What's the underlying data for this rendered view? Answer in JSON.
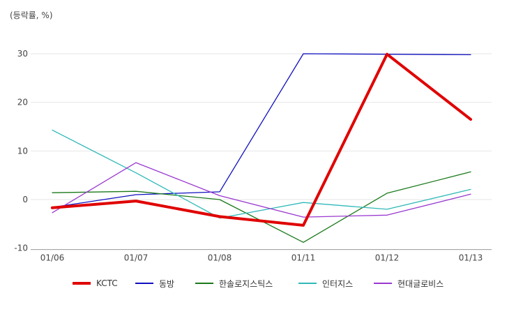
{
  "chart_data": {
    "type": "line",
    "ylabel": "(등락률, %)",
    "categories": [
      "01/06",
      "01/07",
      "01/08",
      "01/11",
      "01/12",
      "01/13"
    ],
    "yticks": [
      30,
      20,
      10,
      0,
      -10
    ],
    "ylim": [
      -10,
      30
    ],
    "grid": true,
    "legend_position": "bottom",
    "series": [
      {
        "name": "KCTC",
        "color": "#e00000",
        "emphasis": true,
        "values": [
          -1.7,
          -0.3,
          -3.5,
          -5.3,
          29.9,
          16.5
        ]
      },
      {
        "name": "동방",
        "color": "#1010c0",
        "values": [
          -1.6,
          1.0,
          1.6,
          30.0,
          29.9,
          29.8
        ]
      },
      {
        "name": "한솔로지스틱스",
        "color": "#1a7a1a",
        "values": [
          1.4,
          1.7,
          0.0,
          -8.8,
          1.3,
          5.7
        ]
      },
      {
        "name": "인터지스",
        "color": "#30b8b8",
        "values": [
          14.3,
          5.5,
          -3.8,
          -0.6,
          -2.0,
          2.1
        ]
      },
      {
        "name": "현대글로비스",
        "color": "#9a38d0",
        "values": [
          -2.7,
          7.6,
          0.8,
          -3.6,
          -3.2,
          1.1
        ]
      }
    ]
  }
}
